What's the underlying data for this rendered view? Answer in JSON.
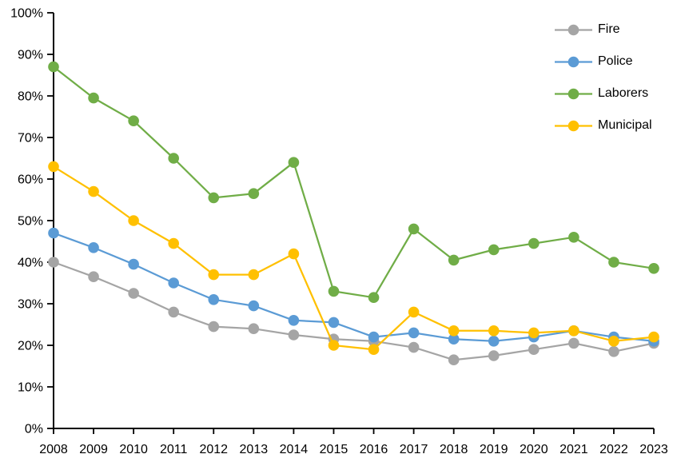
{
  "chart_data": {
    "type": "line",
    "title": "",
    "categories": [
      "2008",
      "2009",
      "2010",
      "2011",
      "2012",
      "2013",
      "2014",
      "2015",
      "2016",
      "2017",
      "2018",
      "2019",
      "2020",
      "2021",
      "2022",
      "2023"
    ],
    "y_axis": {
      "min": 0,
      "max": 100,
      "step": 10,
      "tick_labels": [
        "0%",
        "10%",
        "20%",
        "30%",
        "40%",
        "50%",
        "60%",
        "70%",
        "80%",
        "90%",
        "100%"
      ],
      "unit": "%"
    },
    "grid": false,
    "legend_position": "top-right",
    "axis_color": "#000000",
    "series": [
      {
        "name": "Fire",
        "color": "#A5A5A5",
        "values": [
          40,
          36.5,
          32.5,
          28,
          24.5,
          24,
          22.5,
          21.5,
          21,
          19.5,
          16.5,
          17.5,
          19,
          20.5,
          18.5,
          20.5
        ]
      },
      {
        "name": "Police",
        "color": "#5B9BD5",
        "values": [
          47,
          43.5,
          39.5,
          35,
          31,
          29.5,
          26,
          25.5,
          22,
          23,
          21.5,
          21,
          22,
          23.5,
          22,
          21
        ]
      },
      {
        "name": "Laborers",
        "color": "#70AD47",
        "values": [
          87,
          79.5,
          74,
          65,
          55.5,
          56.5,
          64,
          33,
          31.5,
          48,
          40.5,
          43,
          44.5,
          46,
          40,
          38.5
        ]
      },
      {
        "name": "Municipal",
        "color": "#FFC000",
        "values": [
          63,
          57,
          50,
          44.5,
          37,
          37,
          42,
          20,
          19,
          28,
          23.5,
          23.5,
          23,
          23.5,
          21,
          22
        ]
      }
    ]
  }
}
